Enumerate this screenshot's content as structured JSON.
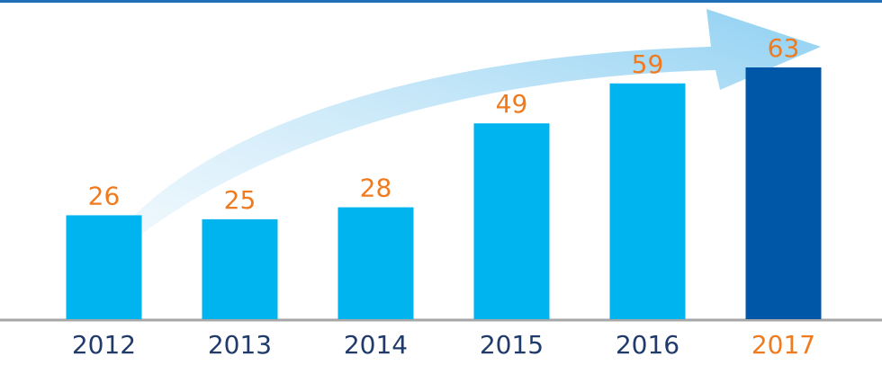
{
  "chart_data": {
    "type": "bar",
    "categories": [
      "2012",
      "2013",
      "2014",
      "2015",
      "2016",
      "2017"
    ],
    "values": [
      26,
      25,
      28,
      49,
      59,
      63
    ],
    "colors": [
      "#00b4ef",
      "#00b4ef",
      "#00b4ef",
      "#00b4ef",
      "#00b4ef",
      "#0057a8"
    ],
    "value_label_color": "#f07a1e",
    "category_label_colors": [
      "#1f3a6b",
      "#1f3a6b",
      "#1f3a6b",
      "#1f3a6b",
      "#1f3a6b",
      "#f07a1e"
    ]
  }
}
